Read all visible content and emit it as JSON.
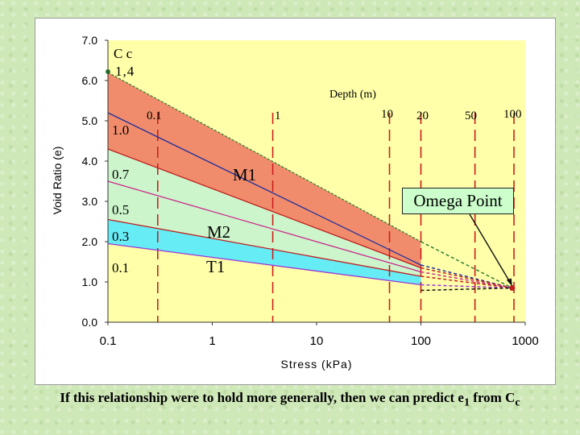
{
  "chart_data": {
    "type": "line",
    "title": "",
    "xlabel": "Stress (kPa)",
    "ylabel": "Void Ratio (e)",
    "x_scale": "log",
    "xlim": [
      0.1,
      1000
    ],
    "ylim": [
      0,
      7
    ],
    "x_ticks": [
      "0.1",
      "1",
      "10",
      "100",
      "1000"
    ],
    "y_ticks": [
      "0.0",
      "1.0",
      "2.0",
      "3.0",
      "4.0",
      "5.0",
      "6.0",
      "7.0"
    ],
    "depth_header": "Depth (m)",
    "depth_markers": [
      {
        "label": "0.1",
        "stress": 0.3
      },
      {
        "label": "1",
        "stress": 3.8
      },
      {
        "label": "10",
        "stress": 50
      },
      {
        "label": "20",
        "stress": 100
      },
      {
        "label": "50",
        "stress": 330
      },
      {
        "label": "100",
        "stress": 780
      }
    ],
    "cc_header": "C c",
    "series": [
      {
        "cc": "1.4",
        "e_start": 6.2,
        "e_end_at_100": 2.0,
        "color": "#2e7d32",
        "style": "dash"
      },
      {
        "cc": "1.0",
        "e_start": 5.2,
        "e_end_at_100": 1.42,
        "color": "#1f2f9e",
        "style": "solid"
      },
      {
        "cc": "0.7",
        "e_start": 4.3,
        "e_end_at_100": 1.35,
        "color": "#c01f1f",
        "style": "solid"
      },
      {
        "cc": "0.5",
        "e_start": 3.5,
        "e_end_at_100": 1.25,
        "color": "#cc2a8c",
        "style": "solid"
      },
      {
        "cc": "0.3",
        "e_start": 2.55,
        "e_end_at_100": 1.14,
        "color": "#c01f1f",
        "style": "solid"
      },
      {
        "cc": "0.1",
        "e_start": 1.95,
        "e_end_at_100": 0.93,
        "color": "#9a37d6",
        "style": "solid"
      }
    ],
    "omega_point": {
      "stress": 750,
      "e": 0.85,
      "label": "Omega Point"
    },
    "regions": [
      {
        "label": "M1",
        "upper_cc": "1.4",
        "lower_cc": "0.7",
        "color": "#f08c6b"
      },
      {
        "label": "M2",
        "upper_cc": "0.7",
        "lower_cc": "0.3",
        "color": "#ccf5cc"
      },
      {
        "label": "T1",
        "upper_cc": "0.3",
        "lower_cc": "0.1",
        "color": "#66ecf5"
      }
    ]
  },
  "caption": {
    "lead": "If this relationship were to hold more generally,  then we can predict e",
    "sub_e": "1",
    "mid": " from C",
    "sub_c": "c"
  },
  "colors": {
    "plot_background": "#ffffaa",
    "depth_line": "#cc1f1f",
    "omega_marker": "#c01f1f"
  }
}
